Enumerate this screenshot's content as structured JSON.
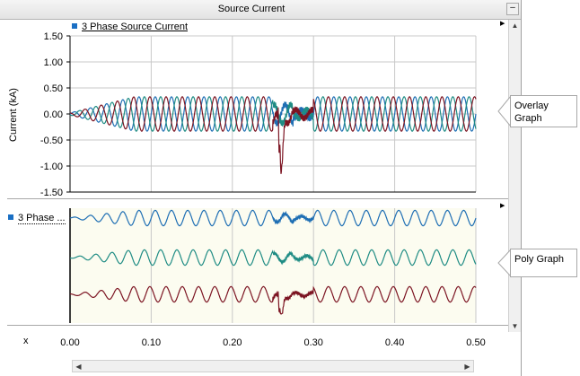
{
  "window": {
    "title": "Source Current",
    "minimize_label": "–"
  },
  "overlay_graph": {
    "legend_label": "3 Phase Source Current",
    "ylabel": "Current (kA)",
    "y_ticks": [
      "1.50",
      "1.00",
      "0.50",
      "0.00",
      "-0.50",
      "-1.00",
      "-1.50"
    ]
  },
  "poly_graph": {
    "legend_label": "3 Phase ..."
  },
  "x_axis": {
    "label": "x",
    "ticks": [
      "0.00",
      "0.10",
      "0.20",
      "0.30",
      "0.40",
      "0.50"
    ]
  },
  "callouts": {
    "overlay": "Overlay Graph",
    "poly": "Poly Graph"
  },
  "colors": {
    "phase_a": "#1f6fb4",
    "phase_b": "#1f8c84",
    "phase_c": "#7c1422",
    "poly_background": "#fcfcf0",
    "grid": "#c8c8c8"
  },
  "icons": {
    "scroll_up": "triangle-up",
    "scroll_down": "triangle-down",
    "scroll_left": "triangle-left",
    "scroll_right": "triangle-right",
    "expand": "triangle-right"
  },
  "chart_data": {
    "type": "line",
    "title": "Source Current",
    "xlabel": "x",
    "ylabel": "Current (kA)",
    "xlim": [
      0.0,
      0.5
    ],
    "ylim": [
      -1.5,
      1.5
    ],
    "x_ticks": [
      0.0,
      0.1,
      0.2,
      0.3,
      0.4,
      0.5
    ],
    "y_ticks": [
      1.5,
      1.0,
      0.5,
      0.0,
      -0.5,
      -1.0,
      -1.5
    ],
    "grid": true,
    "legend": "top-left",
    "series": [
      {
        "name": "3 Phase Source Current",
        "frequency_hz": 50,
        "amplitude_kA": 0.33,
        "ramp_end_s": 0.08,
        "fault_start_s": 0.25,
        "fault_end_s": 0.3,
        "fault_peak_kA": -1.25,
        "fault_peak_time_s": 0.26
      }
    ]
  }
}
